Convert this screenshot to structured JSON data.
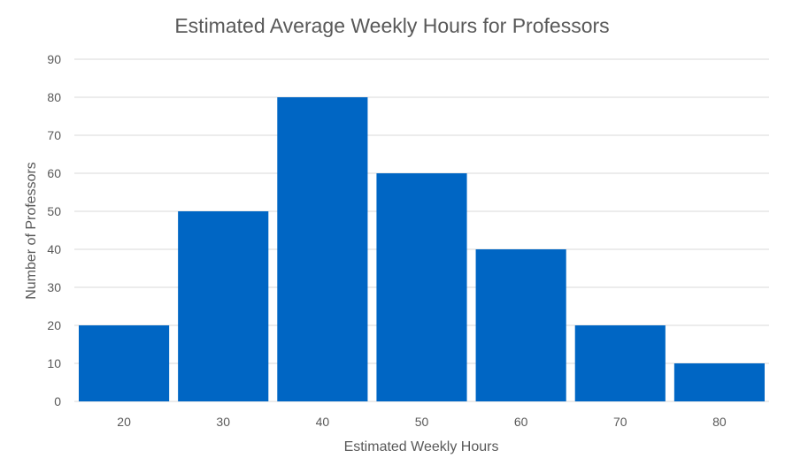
{
  "chart_data": {
    "type": "bar",
    "title": "Estimated Average Weekly Hours for Professors",
    "xlabel": "Estimated Weekly Hours",
    "ylabel": "Number of Professors",
    "categories": [
      "20",
      "30",
      "40",
      "50",
      "60",
      "70",
      "80"
    ],
    "values": [
      20,
      50,
      80,
      60,
      40,
      20,
      10
    ],
    "ylim": [
      0,
      90
    ],
    "yticks": [
      0,
      10,
      20,
      30,
      40,
      50,
      60,
      70,
      80,
      90
    ],
    "grid": true,
    "legend": "none",
    "bar_color": "#0066c4"
  }
}
